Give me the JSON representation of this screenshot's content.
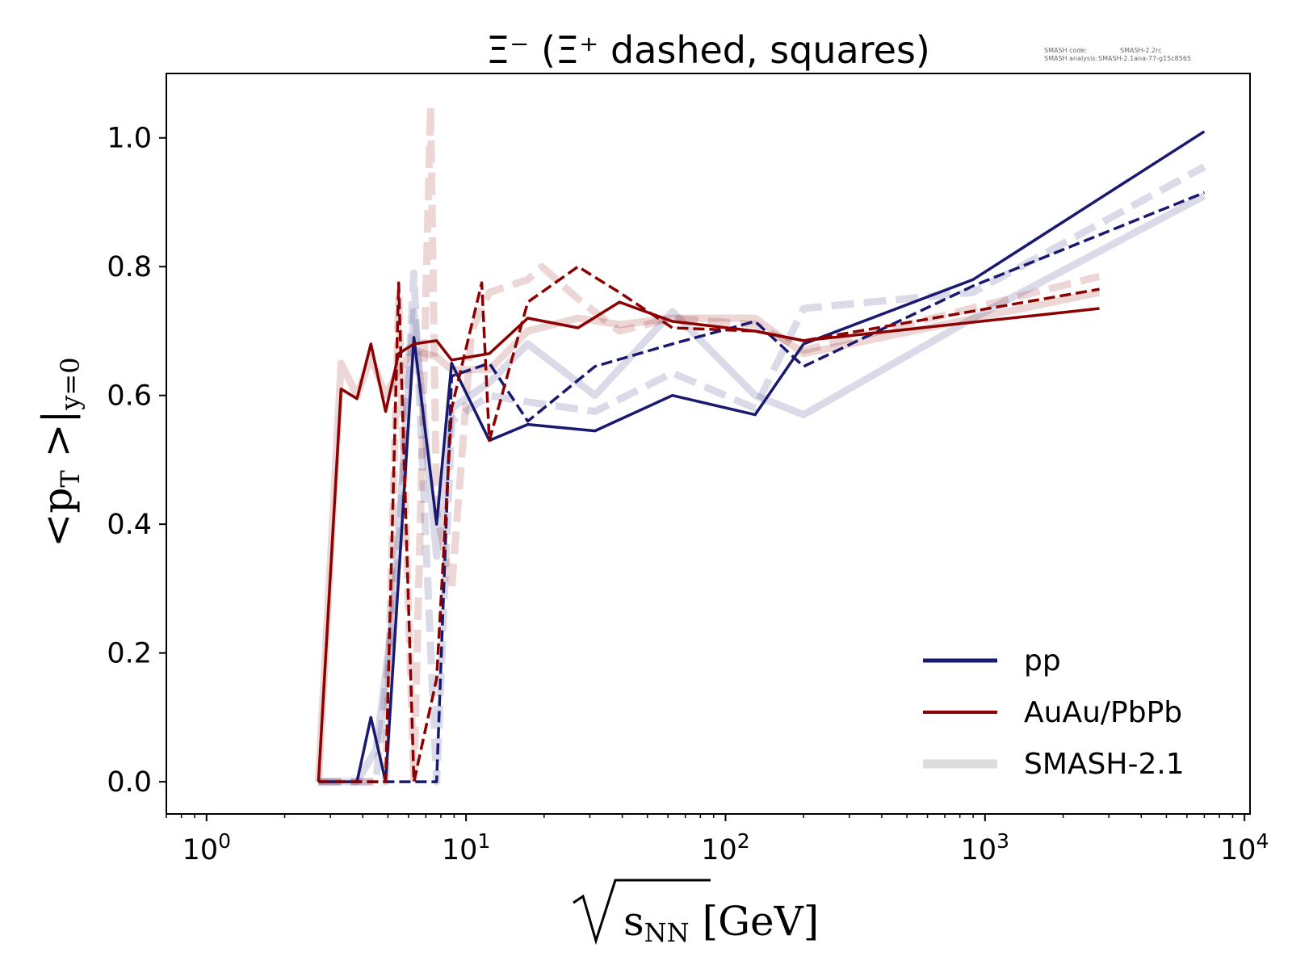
{
  "chart_data": {
    "type": "line",
    "title": "Ξ⁻ (Ξ⁺ dashed, squares)",
    "xlabel": "√sNN [GeV]",
    "ylabel": "<pT>|y=0",
    "xscale": "log",
    "xlim": [
      0.7,
      10500
    ],
    "ylim": [
      -0.05,
      1.1
    ],
    "xticks": [
      1,
      10,
      100,
      1000,
      10000
    ],
    "xtick_labels": [
      "10^0",
      "10^1",
      "10^2",
      "10^3",
      "10^4"
    ],
    "yticks": [
      0.0,
      0.2,
      0.4,
      0.6,
      0.8,
      1.0
    ],
    "ytick_labels": [
      "0.0",
      "0.2",
      "0.4",
      "0.6",
      "0.8",
      "1.0"
    ],
    "legend_position": "bottom-right",
    "legend": [
      {
        "label": "pp",
        "color": "#191970",
        "style": "solid"
      },
      {
        "label": "AuAu/PbPb",
        "color": "#8b0000",
        "style": "solid"
      },
      {
        "label": "SMASH-2.1",
        "color": "#dcdcdc",
        "style": "solid-thick"
      }
    ],
    "version_info": {
      "line1_key": "SMASH code:",
      "line1_val": "SMASH-2.2rc",
      "line2_key": "SMASH analysis:",
      "line2_val": "SMASH-2.1ana-77-g15c8565"
    },
    "series": [
      {
        "name": "pp",
        "color": "#191970",
        "style": "solid",
        "width": 3.5,
        "opacity": 1,
        "x": [
          2.7,
          3.8,
          4.3,
          4.9,
          6.3,
          7.7,
          8.8,
          12.3,
          17.3,
          31.4,
          62.4,
          130,
          200,
          900,
          7000
        ],
        "y": [
          0.0,
          0.0,
          0.1,
          0.0,
          0.69,
          0.4,
          0.65,
          0.53,
          0.555,
          0.545,
          0.6,
          0.57,
          0.68,
          0.78,
          1.01
        ]
      },
      {
        "name": "pp Ξ+",
        "color": "#191970",
        "style": "dashed",
        "width": 3.5,
        "opacity": 1,
        "x": [
          2.7,
          3.8,
          4.3,
          4.9,
          6.3,
          7.7,
          8.8,
          12.3,
          17.3,
          31.4,
          62.4,
          130,
          200,
          900,
          7000
        ],
        "y": [
          0.0,
          0.0,
          0.0,
          0.0,
          0.0,
          0.0,
          0.63,
          0.65,
          0.56,
          0.645,
          0.68,
          0.715,
          0.645,
          0.77,
          0.915
        ]
      },
      {
        "name": "AuAu/PbPb",
        "color": "#8b0000",
        "style": "solid",
        "width": 3.5,
        "opacity": 1,
        "x": [
          2.7,
          3.3,
          3.8,
          4.3,
          4.9,
          5.5,
          6.3,
          7.7,
          8.8,
          12.3,
          17.3,
          27,
          39,
          62.4,
          130,
          200,
          2760
        ],
        "y": [
          0.0,
          0.61,
          0.595,
          0.68,
          0.575,
          0.665,
          0.68,
          0.685,
          0.655,
          0.665,
          0.72,
          0.705,
          0.745,
          0.715,
          0.7,
          0.685,
          0.735
        ]
      },
      {
        "name": "AuAu/PbPb Ξ+",
        "color": "#8b0000",
        "style": "dashed",
        "width": 3.5,
        "opacity": 1,
        "x": [
          2.7,
          3.3,
          3.8,
          4.3,
          4.9,
          5.5,
          6.3,
          7.7,
          8.8,
          11.5,
          12.3,
          17.3,
          27,
          39,
          62.4,
          130,
          200,
          2760
        ],
        "y": [
          0.0,
          0.0,
          0.0,
          0.0,
          0.0,
          0.775,
          0.0,
          0.16,
          0.58,
          0.775,
          0.53,
          0.745,
          0.8,
          0.76,
          0.705,
          0.7,
          0.685,
          0.765
        ]
      },
      {
        "name": "SMASH-2.1 pp",
        "color": "#191970",
        "style": "solid",
        "width": 9,
        "opacity": 0.16,
        "x": [
          2.7,
          3.8,
          4.5,
          5.2,
          6.3,
          7.7,
          8.8,
          12.3,
          17.3,
          31.4,
          62.4,
          130,
          200,
          900,
          7000
        ],
        "y": [
          0.0,
          0.0,
          0.05,
          0.25,
          0.73,
          0.35,
          0.58,
          0.62,
          0.68,
          0.6,
          0.73,
          0.6,
          0.57,
          0.72,
          0.91
        ]
      },
      {
        "name": "SMASH-2.1 pp Ξ+",
        "color": "#191970",
        "style": "dashed",
        "width": 9,
        "opacity": 0.16,
        "x": [
          2.7,
          3.8,
          4.5,
          5.5,
          6.3,
          7.7,
          8.8,
          12.3,
          17.3,
          31.4,
          62.4,
          130,
          200,
          900,
          7000
        ],
        "y": [
          0.0,
          0.0,
          0.0,
          0.35,
          0.79,
          0.0,
          0.56,
          0.6,
          0.59,
          0.575,
          0.635,
          0.58,
          0.735,
          0.76,
          0.955
        ]
      },
      {
        "name": "SMASH-2.1 AuAu/PbPb",
        "color": "#8b0000",
        "style": "solid",
        "width": 9,
        "opacity": 0.16,
        "x": [
          2.7,
          3.3,
          3.8,
          4.3,
          4.9,
          5.5,
          6.3,
          7.7,
          8.8,
          12.3,
          17.3,
          27,
          39,
          62.4,
          130,
          200,
          2760
        ],
        "y": [
          0.0,
          0.65,
          0.6,
          0.66,
          0.6,
          0.64,
          0.67,
          0.66,
          0.64,
          0.64,
          0.7,
          0.72,
          0.71,
          0.72,
          0.72,
          0.665,
          0.76
        ]
      },
      {
        "name": "SMASH-2.1 AuAu/PbPb Ξ+",
        "color": "#8b0000",
        "style": "dashed",
        "width": 9,
        "opacity": 0.16,
        "x": [
          2.7,
          3.3,
          3.8,
          4.3,
          4.9,
          5.5,
          6.3,
          7.3,
          7.7,
          8.8,
          10.5,
          12.3,
          17.3,
          19.6,
          27,
          39,
          62.4,
          130,
          200,
          2760
        ],
        "y": [
          0.0,
          0.0,
          0.0,
          0.0,
          0.0,
          0.75,
          0.0,
          1.05,
          0.42,
          0.3,
          0.7,
          0.76,
          0.78,
          0.8,
          0.75,
          0.7,
          0.72,
          0.71,
          0.67,
          0.785
        ]
      }
    ]
  }
}
